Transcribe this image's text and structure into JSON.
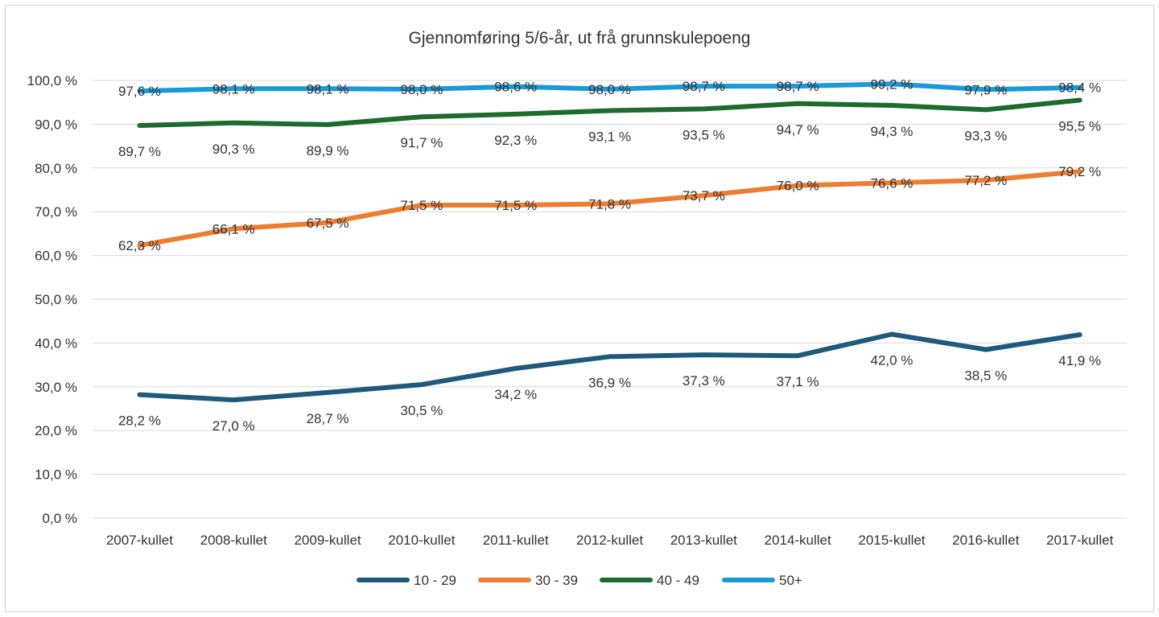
{
  "chart_data": {
    "type": "line",
    "title": "Gjennomføring 5/6-år, ut frå grunnskulepoeng",
    "xlabel": "",
    "ylabel": "",
    "ylim": [
      0,
      100
    ],
    "yticks": [
      0,
      10,
      20,
      30,
      40,
      50,
      60,
      70,
      80,
      90,
      100
    ],
    "ytick_labels": [
      "0,0 %",
      "10,0 %",
      "20,0 %",
      "30,0 %",
      "40,0 %",
      "50,0 %",
      "60,0 %",
      "70,0 %",
      "80,0 %",
      "90,0 %",
      "100,0 %"
    ],
    "categories": [
      "2007-kullet",
      "2008-kullet",
      "2009-kullet",
      "2010-kullet",
      "2011-kullet",
      "2012-kullet",
      "2013-kullet",
      "2014-kullet",
      "2015-kullet",
      "2016-kullet",
      "2017-kullet"
    ],
    "grid": true,
    "legend_position": "bottom",
    "series": [
      {
        "name": "10 - 29",
        "color": "#1f5a7a",
        "label_position": "below",
        "values": [
          28.2,
          27.0,
          28.7,
          30.5,
          34.2,
          36.9,
          37.3,
          37.1,
          42.0,
          38.5,
          41.9
        ],
        "labels": [
          "28,2 %",
          "27,0 %",
          "28,7 %",
          "30,5 %",
          "34,2 %",
          "36,9 %",
          "37,3 %",
          "37,1 %",
          "42,0 %",
          "38,5 %",
          "41,9 %"
        ]
      },
      {
        "name": "30 - 39",
        "color": "#ed7d31",
        "label_position": "center",
        "values": [
          62.3,
          66.1,
          67.5,
          71.5,
          71.5,
          71.8,
          73.7,
          76.0,
          76.6,
          77.2,
          79.2
        ],
        "labels": [
          "62,3 %",
          "66,1 %",
          "67,5 %",
          "71,5 %",
          "71,5 %",
          "71,8 %",
          "73,7 %",
          "76,0 %",
          "76,6 %",
          "77,2 %",
          "79,2 %"
        ]
      },
      {
        "name": "40 - 49",
        "color": "#1e6b2e",
        "label_position": "below",
        "values": [
          89.7,
          90.3,
          89.9,
          91.7,
          92.3,
          93.1,
          93.5,
          94.7,
          94.3,
          93.3,
          95.5
        ],
        "labels": [
          "89,7 %",
          "90,3 %",
          "89,9 %",
          "91,7 %",
          "92,3 %",
          "93,1 %",
          "93,5 %",
          "94,7 %",
          "94,3 %",
          "93,3 %",
          "95,5 %"
        ]
      },
      {
        "name": "50+",
        "color": "#1a9ad6",
        "label_position": "center",
        "values": [
          97.6,
          98.1,
          98.1,
          98.0,
          98.6,
          98.0,
          98.7,
          98.7,
          99.2,
          97.9,
          98.4
        ],
        "labels": [
          "97,6 %",
          "98,1 %",
          "98,1 %",
          "98,0 %",
          "98,6 %",
          "98,0 %",
          "98,7 %",
          "98,7 %",
          "99,2 %",
          "97,9 %",
          "98,4 %"
        ]
      }
    ]
  }
}
